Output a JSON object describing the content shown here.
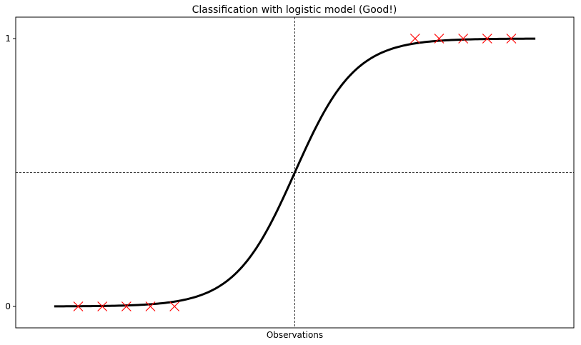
{
  "chart_data": {
    "type": "line",
    "title": "Classification with logistic model (Good!)",
    "xlabel": "Observations",
    "ylabel": "",
    "xlim": [
      -5.8,
      5.8
    ],
    "ylim": [
      -0.08,
      1.08
    ],
    "yticks": [
      0,
      1
    ],
    "ytick_labels": [
      "0",
      "1"
    ],
    "xticks": [],
    "grid": false,
    "legend": "none",
    "reference_lines": {
      "vertical_x": 0,
      "horizontal_y": 0.5,
      "style": "dashed"
    },
    "series": [
      {
        "kind": "curve",
        "function": "logistic",
        "k": 1.6,
        "x_range": [
          -5,
          5
        ],
        "color": "#000000"
      },
      {
        "kind": "scatter",
        "marker": "x",
        "color": "#ff0000",
        "x": [
          -4.5,
          -4.0,
          -3.5,
          -3.0,
          -2.5,
          2.5,
          3.0,
          3.5,
          4.0,
          4.5
        ],
        "y": [
          0,
          0,
          0,
          0,
          0,
          1,
          1,
          1,
          1,
          1
        ]
      }
    ]
  }
}
